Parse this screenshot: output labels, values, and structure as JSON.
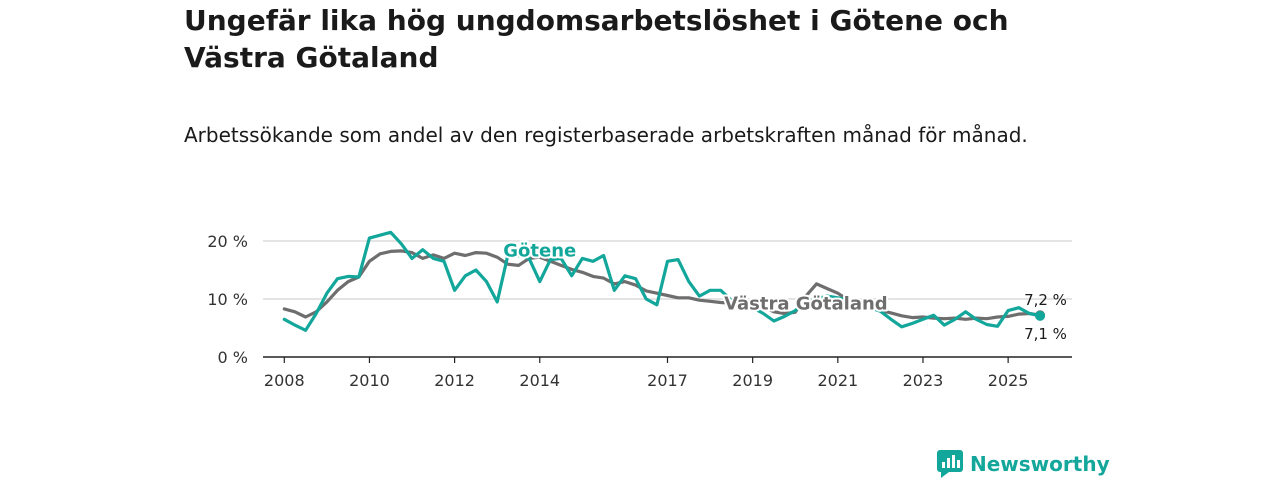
{
  "header": {
    "title": "Ungefär lika hög ungdomsarbetslöshet i Götene och Västra Götaland",
    "subtitle": "Arbetssökande som andel av den registerbaserade arbetskraften månad för månad."
  },
  "brand": {
    "name": "Newsworthy",
    "icon": "newsworthy-logo-icon",
    "color": "#13a79b"
  },
  "chart_data": {
    "type": "line",
    "title": "Ungefär lika hög ungdomsarbetslöshet i Götene och Västra Götaland",
    "subtitle": "Arbetssökande som andel av den registerbaserade arbetskraften månad för månad.",
    "xlabel": "",
    "ylabel": "",
    "xlim": [
      2007.5,
      2026.5
    ],
    "ylim": [
      0,
      20
    ],
    "grid": true,
    "x_ticks": [
      2008,
      2010,
      2012,
      2014,
      2017,
      2019,
      2021,
      2023,
      2025
    ],
    "y_ticks": [
      {
        "value": 0,
        "label": "0 %"
      },
      {
        "value": 10,
        "label": "10 %"
      },
      {
        "value": 20,
        "label": "20 %"
      }
    ],
    "series": [
      {
        "name": "Västra Götaland",
        "color": "#6e6e6e",
        "points": [
          [
            2008.0,
            8.3
          ],
          [
            2008.25,
            7.8
          ],
          [
            2008.5,
            6.9
          ],
          [
            2008.75,
            7.8
          ],
          [
            2009.0,
            9.5
          ],
          [
            2009.25,
            11.5
          ],
          [
            2009.5,
            13.0
          ],
          [
            2009.75,
            13.8
          ],
          [
            2010.0,
            16.5
          ],
          [
            2010.25,
            17.8
          ],
          [
            2010.5,
            18.2
          ],
          [
            2010.75,
            18.3
          ],
          [
            2011.0,
            18.0
          ],
          [
            2011.25,
            17.0
          ],
          [
            2011.5,
            17.6
          ],
          [
            2011.75,
            17.0
          ],
          [
            2012.0,
            17.9
          ],
          [
            2012.25,
            17.5
          ],
          [
            2012.5,
            18.0
          ],
          [
            2012.75,
            17.9
          ],
          [
            2013.0,
            17.2
          ],
          [
            2013.25,
            16.0
          ],
          [
            2013.5,
            15.8
          ],
          [
            2013.75,
            17.0
          ],
          [
            2014.0,
            17.2
          ],
          [
            2014.25,
            16.5
          ],
          [
            2014.5,
            15.8
          ],
          [
            2014.75,
            15.1
          ],
          [
            2015.0,
            14.6
          ],
          [
            2015.25,
            13.9
          ],
          [
            2015.5,
            13.6
          ],
          [
            2015.75,
            12.6
          ],
          [
            2016.0,
            13.0
          ],
          [
            2016.25,
            12.4
          ],
          [
            2016.5,
            11.4
          ],
          [
            2016.75,
            11.0
          ],
          [
            2017.0,
            10.6
          ],
          [
            2017.25,
            10.2
          ],
          [
            2017.5,
            10.2
          ],
          [
            2017.75,
            9.8
          ],
          [
            2018.0,
            9.6
          ],
          [
            2018.25,
            9.4
          ],
          [
            2018.5,
            9.3
          ],
          [
            2018.75,
            9.6
          ],
          [
            2019.0,
            9.2
          ],
          [
            2019.25,
            8.6
          ],
          [
            2019.5,
            7.8
          ],
          [
            2019.75,
            7.5
          ],
          [
            2020.0,
            7.7
          ],
          [
            2020.25,
            10.5
          ],
          [
            2020.5,
            12.6
          ],
          [
            2020.75,
            11.8
          ],
          [
            2021.0,
            11.0
          ],
          [
            2021.25,
            9.8
          ],
          [
            2021.5,
            9.2
          ],
          [
            2021.75,
            8.6
          ],
          [
            2022.0,
            8.0
          ],
          [
            2022.25,
            7.6
          ],
          [
            2022.5,
            7.1
          ],
          [
            2022.75,
            6.8
          ],
          [
            2023.0,
            6.9
          ],
          [
            2023.25,
            6.7
          ],
          [
            2023.5,
            6.6
          ],
          [
            2023.75,
            6.7
          ],
          [
            2024.0,
            6.5
          ],
          [
            2024.25,
            6.7
          ],
          [
            2024.5,
            6.6
          ],
          [
            2024.75,
            6.9
          ],
          [
            2025.0,
            7.0
          ],
          [
            2025.25,
            7.4
          ],
          [
            2025.5,
            7.5
          ],
          [
            2025.75,
            7.2
          ]
        ]
      },
      {
        "name": "Götene",
        "color": "#13a79b",
        "points": [
          [
            2008.0,
            6.5
          ],
          [
            2008.25,
            5.5
          ],
          [
            2008.5,
            4.6
          ],
          [
            2008.75,
            7.5
          ],
          [
            2009.0,
            11.0
          ],
          [
            2009.25,
            13.5
          ],
          [
            2009.5,
            13.9
          ],
          [
            2009.75,
            13.8
          ],
          [
            2010.0,
            20.5
          ],
          [
            2010.25,
            21.0
          ],
          [
            2010.5,
            21.5
          ],
          [
            2010.75,
            19.5
          ],
          [
            2011.0,
            17.0
          ],
          [
            2011.25,
            18.5
          ],
          [
            2011.5,
            17.0
          ],
          [
            2011.75,
            16.5
          ],
          [
            2012.0,
            11.5
          ],
          [
            2012.25,
            14.0
          ],
          [
            2012.5,
            15.0
          ],
          [
            2012.75,
            13.0
          ],
          [
            2013.0,
            9.5
          ],
          [
            2013.25,
            17.5
          ],
          [
            2013.5,
            17.5
          ],
          [
            2013.75,
            17.0
          ],
          [
            2014.0,
            13.0
          ],
          [
            2014.25,
            16.8
          ],
          [
            2014.5,
            17.0
          ],
          [
            2014.75,
            14.0
          ],
          [
            2015.0,
            17.0
          ],
          [
            2015.25,
            16.5
          ],
          [
            2015.5,
            17.5
          ],
          [
            2015.75,
            11.5
          ],
          [
            2016.0,
            14.0
          ],
          [
            2016.25,
            13.5
          ],
          [
            2016.5,
            10.0
          ],
          [
            2016.75,
            9.0
          ],
          [
            2017.0,
            16.5
          ],
          [
            2017.25,
            16.8
          ],
          [
            2017.5,
            13.0
          ],
          [
            2017.75,
            10.5
          ],
          [
            2018.0,
            11.5
          ],
          [
            2018.25,
            11.5
          ],
          [
            2018.5,
            9.8
          ],
          [
            2018.75,
            9.5
          ],
          [
            2019.0,
            8.5
          ],
          [
            2019.25,
            7.5
          ],
          [
            2019.5,
            6.2
          ],
          [
            2019.75,
            7.0
          ],
          [
            2020.0,
            8.0
          ],
          [
            2020.25,
            9.5
          ],
          [
            2020.5,
            10.0
          ],
          [
            2020.75,
            10.5
          ],
          [
            2021.0,
            10.2
          ],
          [
            2021.25,
            9.8
          ],
          [
            2021.5,
            9.0
          ],
          [
            2021.75,
            8.5
          ],
          [
            2022.0,
            7.9
          ],
          [
            2022.25,
            6.5
          ],
          [
            2022.5,
            5.2
          ],
          [
            2022.75,
            5.8
          ],
          [
            2023.0,
            6.5
          ],
          [
            2023.25,
            7.2
          ],
          [
            2023.5,
            5.5
          ],
          [
            2023.75,
            6.5
          ],
          [
            2024.0,
            7.8
          ],
          [
            2024.25,
            6.5
          ],
          [
            2024.5,
            5.6
          ],
          [
            2024.75,
            5.3
          ],
          [
            2025.0,
            8.0
          ],
          [
            2025.25,
            8.5
          ],
          [
            2025.5,
            7.5
          ],
          [
            2025.75,
            7.1
          ]
        ]
      }
    ],
    "annotations": [
      {
        "series": "Götene",
        "text": "Götene",
        "x": 2014.0,
        "y": 17.3
      },
      {
        "series": "Västra Götaland",
        "text": "Västra Götaland",
        "x": 2020.25,
        "y": 8.2
      },
      {
        "series": "Västra Götaland",
        "text": "7,2 %",
        "x": 2025.75,
        "y": 7.2,
        "position": "above-end"
      },
      {
        "series": "Götene",
        "text": "7,1 %",
        "x": 2025.75,
        "y": 7.1,
        "position": "below-end"
      }
    ]
  }
}
